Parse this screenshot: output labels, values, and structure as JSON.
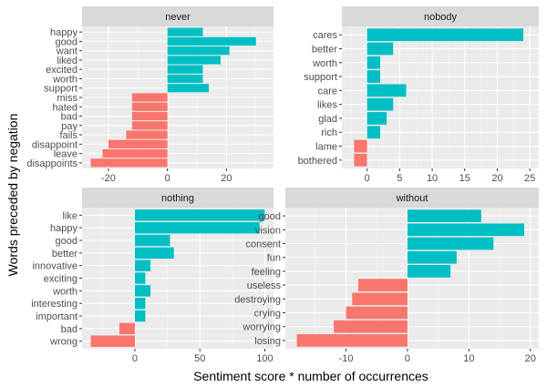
{
  "colors": {
    "positive": "#00BFC4",
    "negative": "#F8766D",
    "panel_background": "#EBEBEB",
    "strip_background": "#D9D9D9",
    "grid_major": "#FFFFFF"
  },
  "chart_data": {
    "type": "bar",
    "orientation": "horizontal",
    "facet": "wrap",
    "xlabel": "Sentiment score * number of occurrences",
    "ylabel": "Words preceded by negation",
    "legend": "none",
    "grid": true,
    "panels": [
      {
        "title": "never",
        "xlim": [
          -26,
          33
        ],
        "xticks": [
          -20,
          0,
          20
        ],
        "categories": [
          "happy",
          "good",
          "want",
          "liked",
          "excited",
          "worth",
          "support",
          "miss",
          "hated",
          "bad",
          "pay",
          "fails",
          "disappoint",
          "leave",
          "disappoints"
        ],
        "values": [
          12,
          30,
          21,
          18,
          12,
          12,
          14,
          -12,
          -12,
          -12,
          -12,
          -14,
          -20,
          -22,
          -26
        ]
      },
      {
        "title": "nobody",
        "xlim": [
          -2.5,
          25
        ],
        "xticks": [
          0,
          5,
          10,
          15,
          20,
          25
        ],
        "categories": [
          "cares",
          "better",
          "worth",
          "support",
          "care",
          "likes",
          "glad",
          "rich",
          "lame",
          "bothered"
        ],
        "values": [
          24,
          4,
          2,
          2,
          6,
          4,
          3,
          2,
          -2,
          -2
        ]
      },
      {
        "title": "nothing",
        "xlim": [
          -34,
          100
        ],
        "xticks": [
          0,
          50,
          100
        ],
        "categories": [
          "like",
          "happy",
          "good",
          "better",
          "innovative",
          "exciting",
          "worth",
          "interesting",
          "important",
          "bad",
          "wrong"
        ],
        "values": [
          100,
          96,
          27,
          30,
          12,
          8,
          12,
          8,
          8,
          -12,
          -34
        ]
      },
      {
        "title": "without",
        "xlim": [
          -18,
          19.5
        ],
        "xticks": [
          -10,
          0,
          10,
          20
        ],
        "categories": [
          "good",
          "vision",
          "consent",
          "fun",
          "feeling",
          "useless",
          "destroying",
          "crying",
          "worrying",
          "losing"
        ],
        "values": [
          12,
          19,
          14,
          8,
          7,
          -8,
          -9,
          -10,
          -12,
          -18
        ]
      }
    ]
  }
}
